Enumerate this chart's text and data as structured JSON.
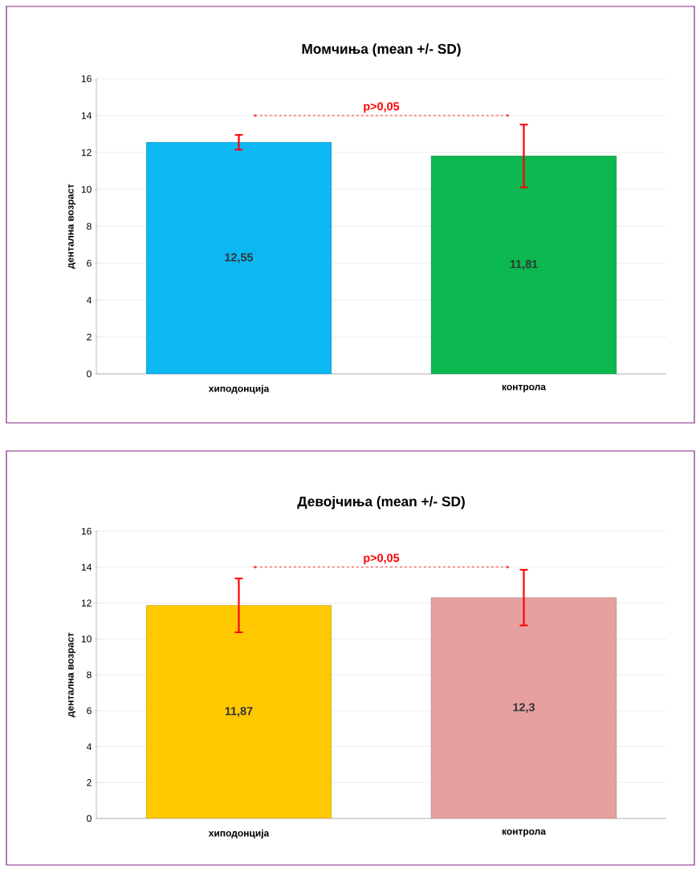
{
  "chart_data": [
    {
      "type": "bar",
      "title": "Момчиња (mean +/- SD)",
      "ylabel": "дентална возраст",
      "categories": [
        "хиподонција",
        "контрола"
      ],
      "values": [
        12.55,
        11.81
      ],
      "colors": [
        "#0cb7f2",
        "#0bb84f"
      ],
      "errors": [
        0.4,
        1.7
      ],
      "value_labels": [
        "12,55",
        "11,81"
      ],
      "ylim": [
        0,
        16
      ],
      "yticks": [
        0,
        2,
        4,
        6,
        8,
        10,
        12,
        14,
        16
      ],
      "grid": "y",
      "annotations": [
        "p>0,05"
      ]
    },
    {
      "type": "bar",
      "title": "Девојчиња (mean +/- SD)",
      "ylabel": "дентална возраст",
      "categories": [
        "хиподонција",
        "контрола"
      ],
      "values": [
        11.87,
        12.3
      ],
      "colors": [
        "#ffc800",
        "#e6a0a0"
      ],
      "errors": [
        1.5,
        1.55
      ],
      "value_labels": [
        "11,87",
        "12,3"
      ],
      "ylim": [
        0,
        16
      ],
      "yticks": [
        0,
        2,
        4,
        6,
        8,
        10,
        12,
        14,
        16
      ],
      "grid": "y",
      "annotations": [
        "p>0,05"
      ]
    }
  ]
}
